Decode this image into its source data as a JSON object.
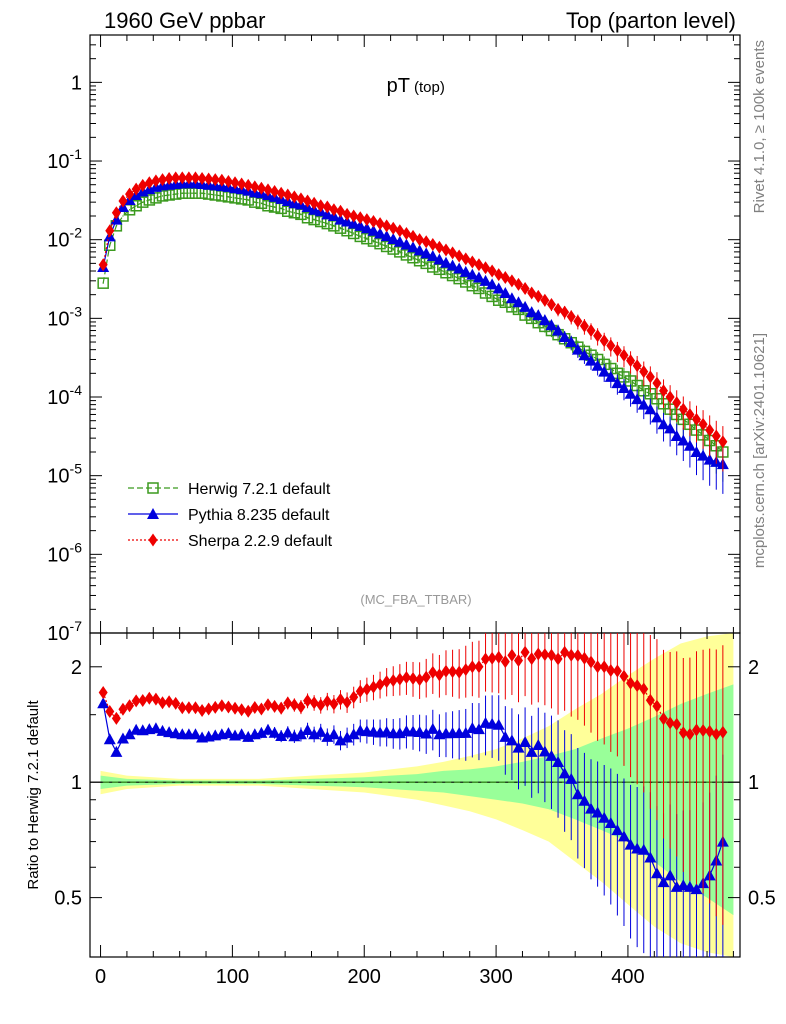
{
  "header": {
    "left": "1960 GeV ppbar",
    "right": "Top (parton level)"
  },
  "side_labels": {
    "rivet": "Rivet 4.1.0, ≥ 100k events",
    "mcplots": "mcplots.cern.ch [arXiv:2401.10621]"
  },
  "chart_data": [
    {
      "type": "scatter",
      "title": "pT",
      "title_sub": "(top)",
      "yscale": "log",
      "xlim": [
        -8,
        485
      ],
      "ylim": [
        1e-07,
        4
      ],
      "y_ticks": [
        {
          "value": 1,
          "label": "1"
        },
        {
          "value": 0.1,
          "label": "10^-1"
        },
        {
          "value": 0.01,
          "label": "10^-2"
        },
        {
          "value": 0.001,
          "label": "10^-3"
        },
        {
          "value": 0.0001,
          "label": "10^-4"
        },
        {
          "value": 1e-05,
          "label": "10^-5"
        },
        {
          "value": 1e-06,
          "label": "10^-6"
        },
        {
          "value": 1e-07,
          "label": "10^-7"
        }
      ],
      "watermark": "(MC_FBA_TTBAR)",
      "series": [
        {
          "name": "Herwig 7.2.1 default",
          "color": "#3b9a1e",
          "marker": "open-square",
          "line": "dashed",
          "x": [
            2,
            7,
            12,
            17,
            22,
            27,
            32,
            37,
            42,
            47,
            52,
            57,
            62,
            67,
            72,
            77,
            82,
            87,
            92,
            97,
            102,
            107,
            112,
            117,
            122,
            127,
            132,
            137,
            142,
            147,
            152,
            157,
            162,
            167,
            172,
            177,
            182,
            187,
            192,
            197,
            202,
            207,
            212,
            217,
            222,
            227,
            232,
            237,
            242,
            247,
            252,
            257,
            262,
            267,
            272,
            277,
            282,
            287,
            292,
            297,
            302,
            307,
            312,
            317,
            322,
            327,
            332,
            337,
            342,
            347,
            352,
            357,
            362,
            367,
            372,
            377,
            382,
            387,
            392,
            397,
            402,
            407,
            412,
            417,
            422,
            427,
            432,
            437,
            442,
            447,
            452,
            457,
            462,
            467,
            472
          ],
          "y": [
            0.0028,
            0.0085,
            0.015,
            0.02,
            0.024,
            0.027,
            0.03,
            0.032,
            0.034,
            0.036,
            0.037,
            0.038,
            0.039,
            0.039,
            0.039,
            0.039,
            0.038,
            0.037,
            0.036,
            0.035,
            0.034,
            0.033,
            0.032,
            0.03,
            0.029,
            0.027,
            0.026,
            0.025,
            0.023,
            0.022,
            0.021,
            0.019,
            0.018,
            0.017,
            0.016,
            0.015,
            0.014,
            0.013,
            0.012,
            0.011,
            0.0103,
            0.0096,
            0.0089,
            0.0082,
            0.0076,
            0.007,
            0.0064,
            0.0059,
            0.0054,
            0.005,
            0.0045,
            0.0042,
            0.0038,
            0.0035,
            0.0032,
            0.0029,
            0.0026,
            0.0024,
            0.0021,
            0.0019,
            0.0017,
            0.0016,
            0.0014,
            0.0013,
            0.0011,
            0.001,
            0.00088,
            0.00079,
            0.0007,
            0.00062,
            0.00055,
            0.00049,
            0.00043,
            0.00038,
            0.00034,
            0.0003,
            0.00026,
            0.00023,
            0.0002,
            0.00018,
            0.00016,
            0.00014,
            0.00012,
            0.00011,
            9.5e-05,
            8.2e-05,
            7e-05,
            6e-05,
            5.2e-05,
            4.5e-05,
            3.8e-05,
            3.3e-05,
            2.8e-05,
            2.4e-05,
            2e-05
          ]
        },
        {
          "name": "Pythia 8.235 default",
          "color": "#0000dd",
          "marker": "filled-triangle",
          "line": "solid",
          "x": [
            2,
            7,
            12,
            17,
            22,
            27,
            32,
            37,
            42,
            47,
            52,
            57,
            62,
            67,
            72,
            77,
            82,
            87,
            92,
            97,
            102,
            107,
            112,
            117,
            122,
            127,
            132,
            137,
            142,
            147,
            152,
            157,
            162,
            167,
            172,
            177,
            182,
            187,
            192,
            197,
            202,
            207,
            212,
            217,
            222,
            227,
            232,
            237,
            242,
            247,
            252,
            257,
            262,
            267,
            272,
            277,
            282,
            287,
            292,
            297,
            302,
            307,
            312,
            317,
            322,
            327,
            332,
            337,
            342,
            347,
            352,
            357,
            362,
            367,
            372,
            377,
            382,
            387,
            392,
            397,
            402,
            407,
            412,
            417,
            422,
            427,
            432,
            437,
            442,
            447,
            452,
            457,
            462,
            467,
            472
          ],
          "y": [
            0.0045,
            0.011,
            0.018,
            0.026,
            0.032,
            0.037,
            0.041,
            0.044,
            0.047,
            0.049,
            0.05,
            0.051,
            0.052,
            0.052,
            0.052,
            0.051,
            0.05,
            0.049,
            0.048,
            0.047,
            0.045,
            0.044,
            0.042,
            0.04,
            0.039,
            0.037,
            0.035,
            0.033,
            0.031,
            0.029,
            0.028,
            0.026,
            0.024,
            0.023,
            0.021,
            0.02,
            0.018,
            0.017,
            0.016,
            0.015,
            0.014,
            0.013,
            0.012,
            0.0111,
            0.0102,
            0.0094,
            0.0087,
            0.008,
            0.0073,
            0.0067,
            0.0062,
            0.0056,
            0.0051,
            0.0047,
            0.0043,
            0.0039,
            0.0036,
            0.0033,
            0.003,
            0.0027,
            0.0024,
            0.0021,
            0.0018,
            0.0016,
            0.0014,
            0.0012,
            0.0011,
            0.00095,
            0.00082,
            0.0007,
            0.00058,
            0.0005,
            0.0004,
            0.00034,
            0.00029,
            0.00025,
            0.00021,
            0.00018,
            0.00015,
            0.00013,
            0.00011,
            9.4e-05,
            8e-05,
            7e-05,
            5.5e-05,
            4.5e-05,
            4e-05,
            3.2e-05,
            2.8e-05,
            2.4e-05,
            2e-05,
            1.8e-05,
            1.6e-05,
            1.5e-05,
            1.4e-05
          ]
        },
        {
          "name": "Sherpa 2.2.9 default",
          "color": "#ee0000",
          "marker": "filled-diamond",
          "line": "dotted",
          "x": [
            2,
            7,
            12,
            17,
            22,
            27,
            32,
            37,
            42,
            47,
            52,
            57,
            62,
            67,
            72,
            77,
            82,
            87,
            92,
            97,
            102,
            107,
            112,
            117,
            122,
            127,
            132,
            137,
            142,
            147,
            152,
            157,
            162,
            167,
            172,
            177,
            182,
            187,
            192,
            197,
            202,
            207,
            212,
            217,
            222,
            227,
            232,
            237,
            242,
            247,
            252,
            257,
            262,
            267,
            272,
            277,
            282,
            287,
            292,
            297,
            302,
            307,
            312,
            317,
            322,
            327,
            332,
            337,
            342,
            347,
            352,
            357,
            362,
            367,
            372,
            377,
            382,
            387,
            392,
            397,
            402,
            407,
            412,
            417,
            422,
            427,
            432,
            437,
            442,
            447,
            452,
            457,
            462,
            467,
            472
          ],
          "y": [
            0.0048,
            0.013,
            0.022,
            0.031,
            0.038,
            0.044,
            0.049,
            0.053,
            0.056,
            0.058,
            0.06,
            0.061,
            0.061,
            0.061,
            0.061,
            0.06,
            0.059,
            0.058,
            0.057,
            0.055,
            0.053,
            0.051,
            0.049,
            0.047,
            0.045,
            0.043,
            0.041,
            0.039,
            0.037,
            0.035,
            0.033,
            0.031,
            0.029,
            0.027,
            0.026,
            0.024,
            0.023,
            0.021,
            0.02,
            0.019,
            0.018,
            0.017,
            0.016,
            0.015,
            0.014,
            0.013,
            0.012,
            0.011,
            0.01,
            0.0094,
            0.0087,
            0.008,
            0.0074,
            0.0068,
            0.0062,
            0.0057,
            0.0052,
            0.0048,
            0.0044,
            0.004,
            0.0036,
            0.0033,
            0.003,
            0.0027,
            0.0024,
            0.0021,
            0.0019,
            0.0017,
            0.0015,
            0.0013,
            0.0012,
            0.00105,
            0.00092,
            0.0008,
            0.0007,
            0.0006,
            0.00052,
            0.00045,
            0.00039,
            0.00034,
            0.00029,
            0.00025,
            0.00021,
            0.00018,
            0.00015,
            0.00012,
            0.0001,
            8.5e-05,
            7e-05,
            6e-05,
            5.2e-05,
            4.5e-05,
            3.8e-05,
            3.2e-05,
            2.7e-05
          ]
        }
      ]
    },
    {
      "type": "scatter",
      "ylabel": "Ratio to Herwig 7.2.1 default",
      "xlim": [
        -8,
        485
      ],
      "ylim": [
        0.35,
        2.45
      ],
      "yscale": "log",
      "x_ticks": [
        0,
        100,
        200,
        300,
        400
      ],
      "y_ticks": [
        0.5,
        1,
        2
      ],
      "band": {
        "x": [
          0,
          20,
          40,
          60,
          80,
          100,
          120,
          140,
          160,
          180,
          200,
          220,
          240,
          260,
          280,
          300,
          320,
          340,
          360,
          380,
          400,
          420,
          440,
          460,
          480
        ],
        "green_lo": [
          0.96,
          0.98,
          0.985,
          0.99,
          0.99,
          0.99,
          0.99,
          0.985,
          0.98,
          0.975,
          0.97,
          0.96,
          0.95,
          0.94,
          0.92,
          0.9,
          0.88,
          0.85,
          0.8,
          0.75,
          0.7,
          0.62,
          0.55,
          0.5,
          0.45
        ],
        "green_hi": [
          1.04,
          1.02,
          1.015,
          1.01,
          1.01,
          1.01,
          1.01,
          1.015,
          1.02,
          1.025,
          1.03,
          1.04,
          1.05,
          1.07,
          1.08,
          1.1,
          1.13,
          1.17,
          1.22,
          1.3,
          1.38,
          1.48,
          1.6,
          1.7,
          1.8
        ],
        "yellow_lo": [
          0.93,
          0.96,
          0.97,
          0.98,
          0.98,
          0.98,
          0.98,
          0.97,
          0.96,
          0.95,
          0.94,
          0.92,
          0.9,
          0.87,
          0.84,
          0.8,
          0.75,
          0.7,
          0.62,
          0.55,
          0.48,
          0.42,
          0.38,
          0.36,
          0.35
        ],
        "yellow_hi": [
          1.07,
          1.04,
          1.03,
          1.02,
          1.02,
          1.02,
          1.02,
          1.03,
          1.04,
          1.05,
          1.06,
          1.08,
          1.1,
          1.13,
          1.17,
          1.22,
          1.3,
          1.4,
          1.55,
          1.7,
          1.9,
          2.1,
          2.3,
          2.4,
          2.45
        ]
      }
    }
  ]
}
